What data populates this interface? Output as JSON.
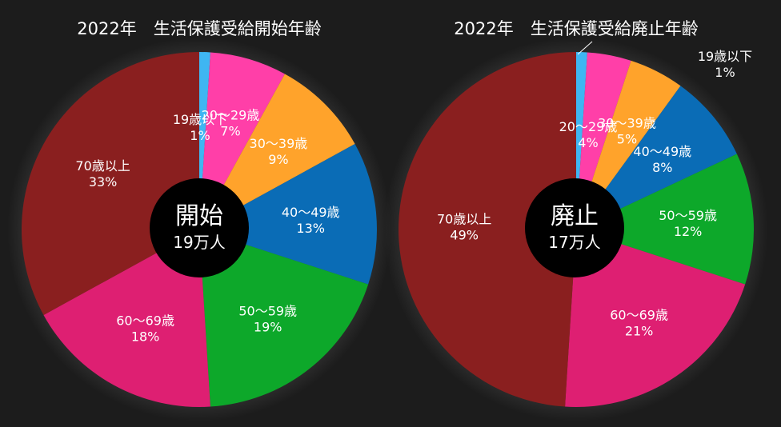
{
  "chart_data": [
    {
      "type": "pie",
      "title": "2022年　生活保護受給開始年齢",
      "center": {
        "main": "開始",
        "sub": "19万人"
      },
      "categories": [
        "19歳以下",
        "20～29歳",
        "30～39歳",
        "40～49歳",
        "50～59歳",
        "60～69歳",
        "70歳以上"
      ],
      "values": [
        1,
        7,
        9,
        13,
        19,
        18,
        33
      ],
      "value_labels": [
        "1%",
        "7%",
        "9%",
        "13%",
        "19%",
        "18%",
        "33%"
      ],
      "colors": [
        "#3fb6f2",
        "#ff3fa8",
        "#ffa32b",
        "#0a6cb6",
        "#0da82a",
        "#de1f72",
        "#8a1f1f"
      ]
    },
    {
      "type": "pie",
      "title": "2022年　生活保護受給廃止年齢",
      "center": {
        "main": "廃止",
        "sub": "17万人"
      },
      "categories": [
        "19歳以下",
        "20～29歳",
        "30～39歳",
        "40～49歳",
        "50～59歳",
        "60～69歳",
        "70歳以上"
      ],
      "values": [
        1,
        4,
        5,
        8,
        12,
        21,
        49
      ],
      "value_labels": [
        "1%",
        "4%",
        "5%",
        "8%",
        "12%",
        "21%",
        "49%"
      ],
      "colors": [
        "#3fb6f2",
        "#ff3fa8",
        "#ffa32b",
        "#0a6cb6",
        "#0da82a",
        "#de1f72",
        "#8a1f1f"
      ]
    }
  ]
}
